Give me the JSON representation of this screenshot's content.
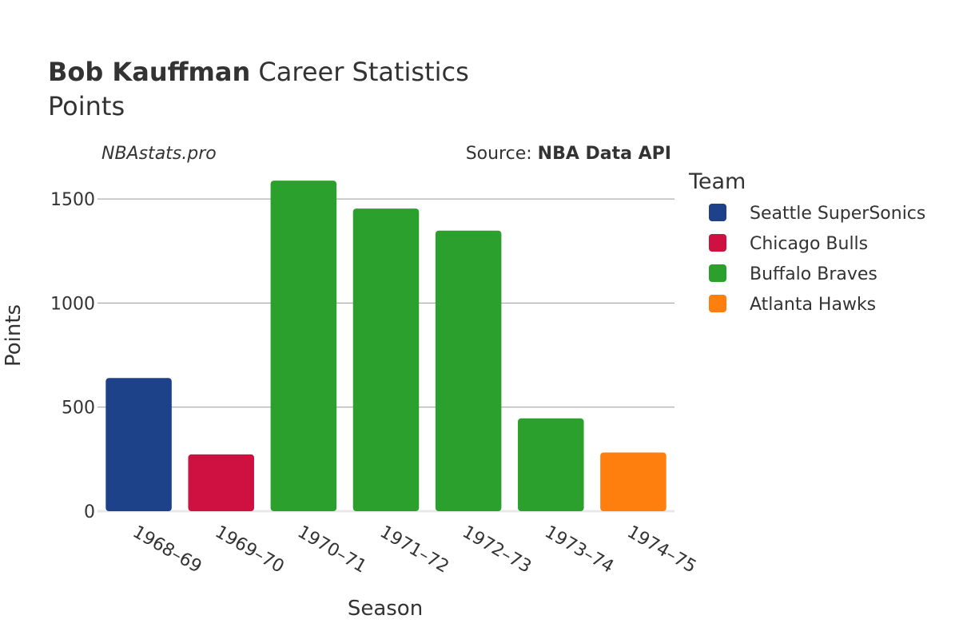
{
  "header": {
    "title_bold": "Bob Kauffman",
    "title_rest": " Career Statistics",
    "subtitle": "Points",
    "watermark": "NBAstats.pro",
    "source_prefix": "Source: ",
    "source_name": "NBA Data API"
  },
  "legend": {
    "title": "Team",
    "items": [
      {
        "label": "Seattle SuperSonics",
        "color": "#1d428a"
      },
      {
        "label": "Chicago Bulls",
        "color": "#ce1141"
      },
      {
        "label": "Buffalo Braves",
        "color": "#2ca02c"
      },
      {
        "label": "Atlanta Hawks",
        "color": "#ff7f0e"
      }
    ]
  },
  "chart_data": {
    "type": "bar",
    "xlabel": "Season",
    "ylabel": "Points",
    "ylim": [
      0,
      1650
    ],
    "yticks": [
      0,
      500,
      1000,
      1500
    ],
    "grid": true,
    "legend_position": "right",
    "categories": [
      "1968–69",
      "1969–70",
      "1970–71",
      "1971–72",
      "1972–73",
      "1973–74",
      "1974–75"
    ],
    "values": [
      640,
      273,
      1588,
      1454,
      1348,
      446,
      282
    ],
    "teams": [
      "Seattle SuperSonics",
      "Chicago Bulls",
      "Buffalo Braves",
      "Buffalo Braves",
      "Buffalo Braves",
      "Buffalo Braves",
      "Atlanta Hawks"
    ]
  }
}
